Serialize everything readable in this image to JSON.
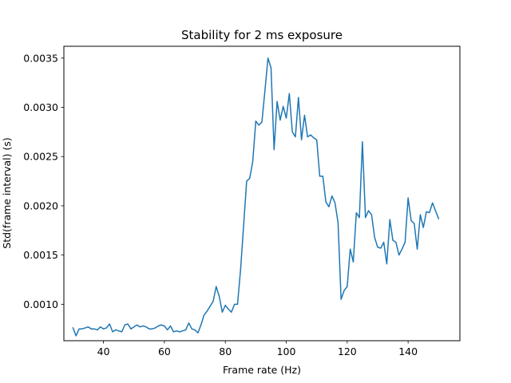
{
  "chart_data": {
    "type": "line",
    "title": "Stability for 2 ms exposure",
    "xlabel": "Frame rate (Hz)",
    "ylabel": "Std(frame interval) (s)",
    "xlim": [
      27,
      157
    ],
    "ylim": [
      0.00063,
      0.00362
    ],
    "xticks": [
      40,
      60,
      80,
      100,
      120,
      140
    ],
    "yticks": [
      0.001,
      0.0015,
      0.002,
      0.0025,
      0.003,
      0.0035
    ],
    "ytick_labels": [
      "0.0010",
      "0.0015",
      "0.0020",
      "0.0025",
      "0.0030",
      "0.0035"
    ],
    "grid": false,
    "series": [
      {
        "color": "#1f77b4",
        "x": [
          30,
          31,
          32,
          33,
          34,
          35,
          36,
          37,
          38,
          39,
          40,
          41,
          42,
          43,
          44,
          45,
          46,
          47,
          48,
          49,
          50,
          51,
          52,
          53,
          54,
          55,
          56,
          57,
          58,
          59,
          60,
          61,
          62,
          63,
          64,
          65,
          66,
          67,
          68,
          69,
          70,
          71,
          72,
          73,
          74,
          75,
          76,
          77,
          78,
          79,
          80,
          81,
          82,
          83,
          84,
          85,
          86,
          87,
          88,
          89,
          90,
          91,
          92,
          93,
          94,
          95,
          96,
          97,
          98,
          99,
          100,
          101,
          102,
          103,
          104,
          105,
          106,
          107,
          108,
          109,
          110,
          111,
          112,
          113,
          114,
          115,
          116,
          117,
          118,
          119,
          120,
          121,
          122,
          123,
          124,
          125,
          126,
          127,
          128,
          129,
          130,
          131,
          132,
          133,
          134,
          135,
          136,
          137,
          138,
          139,
          140,
          141,
          142,
          143,
          144,
          145,
          146,
          147,
          148,
          149,
          150
        ],
        "values": [
          0.00076,
          0.00068,
          0.00075,
          0.00075,
          0.00076,
          0.00077,
          0.00075,
          0.00075,
          0.00074,
          0.00077,
          0.00075,
          0.00076,
          0.0008,
          0.00072,
          0.00074,
          0.00073,
          0.00072,
          0.00079,
          0.0008,
          0.00075,
          0.00077,
          0.00079,
          0.00077,
          0.00078,
          0.00077,
          0.00075,
          0.00075,
          0.00076,
          0.00078,
          0.00079,
          0.00078,
          0.00074,
          0.00078,
          0.00072,
          0.00073,
          0.00072,
          0.00073,
          0.00074,
          0.00081,
          0.00075,
          0.00074,
          0.00071,
          0.00079,
          0.00089,
          0.00093,
          0.00098,
          0.00103,
          0.00118,
          0.00108,
          0.00092,
          0.00099,
          0.00095,
          0.00092,
          0.001,
          0.001,
          0.00135,
          0.0018,
          0.00225,
          0.00228,
          0.00245,
          0.00286,
          0.00282,
          0.00285,
          0.00317,
          0.0035,
          0.0034,
          0.00257,
          0.00306,
          0.00287,
          0.00301,
          0.00289,
          0.00314,
          0.00275,
          0.0027,
          0.0031,
          0.00267,
          0.00292,
          0.0027,
          0.00272,
          0.00269,
          0.00267,
          0.0023,
          0.0023,
          0.00204,
          0.00199,
          0.0021,
          0.00203,
          0.00183,
          0.00105,
          0.00114,
          0.00118,
          0.00156,
          0.00143,
          0.00193,
          0.00188,
          0.00265,
          0.00188,
          0.00195,
          0.00191,
          0.00168,
          0.00158,
          0.00157,
          0.00163,
          0.00141,
          0.00186,
          0.00165,
          0.00163,
          0.0015,
          0.00156,
          0.00163,
          0.00208,
          0.00185,
          0.00182,
          0.00156,
          0.00191,
          0.00178,
          0.00194,
          0.00193,
          0.00203,
          0.00195,
          0.00187
        ]
      }
    ]
  }
}
